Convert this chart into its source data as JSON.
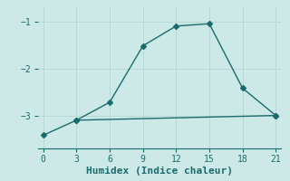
{
  "xlabel": "Humidex (Indice chaleur)",
  "ylabel": "",
  "bg_color": "#cce9e7",
  "line_color": "#1a6b6b",
  "grid_color": "#b8d8d6",
  "line1_x": [
    0,
    3,
    6,
    9,
    12,
    15,
    18,
    21
  ],
  "line1_y": [
    -3.42,
    -3.1,
    -2.72,
    -1.52,
    -1.1,
    -1.05,
    -2.42,
    -3.0
  ],
  "line2_x": [
    3,
    21
  ],
  "line2_y": [
    -3.1,
    -3.0
  ],
  "xlim": [
    -0.5,
    21.5
  ],
  "ylim": [
    -3.7,
    -0.7
  ],
  "xticks": [
    0,
    3,
    6,
    9,
    12,
    15,
    18,
    21
  ],
  "yticks": [
    -3,
    -2,
    -1
  ],
  "marker": "D",
  "marker_size": 3,
  "linewidth": 1.0,
  "font_size": 8
}
